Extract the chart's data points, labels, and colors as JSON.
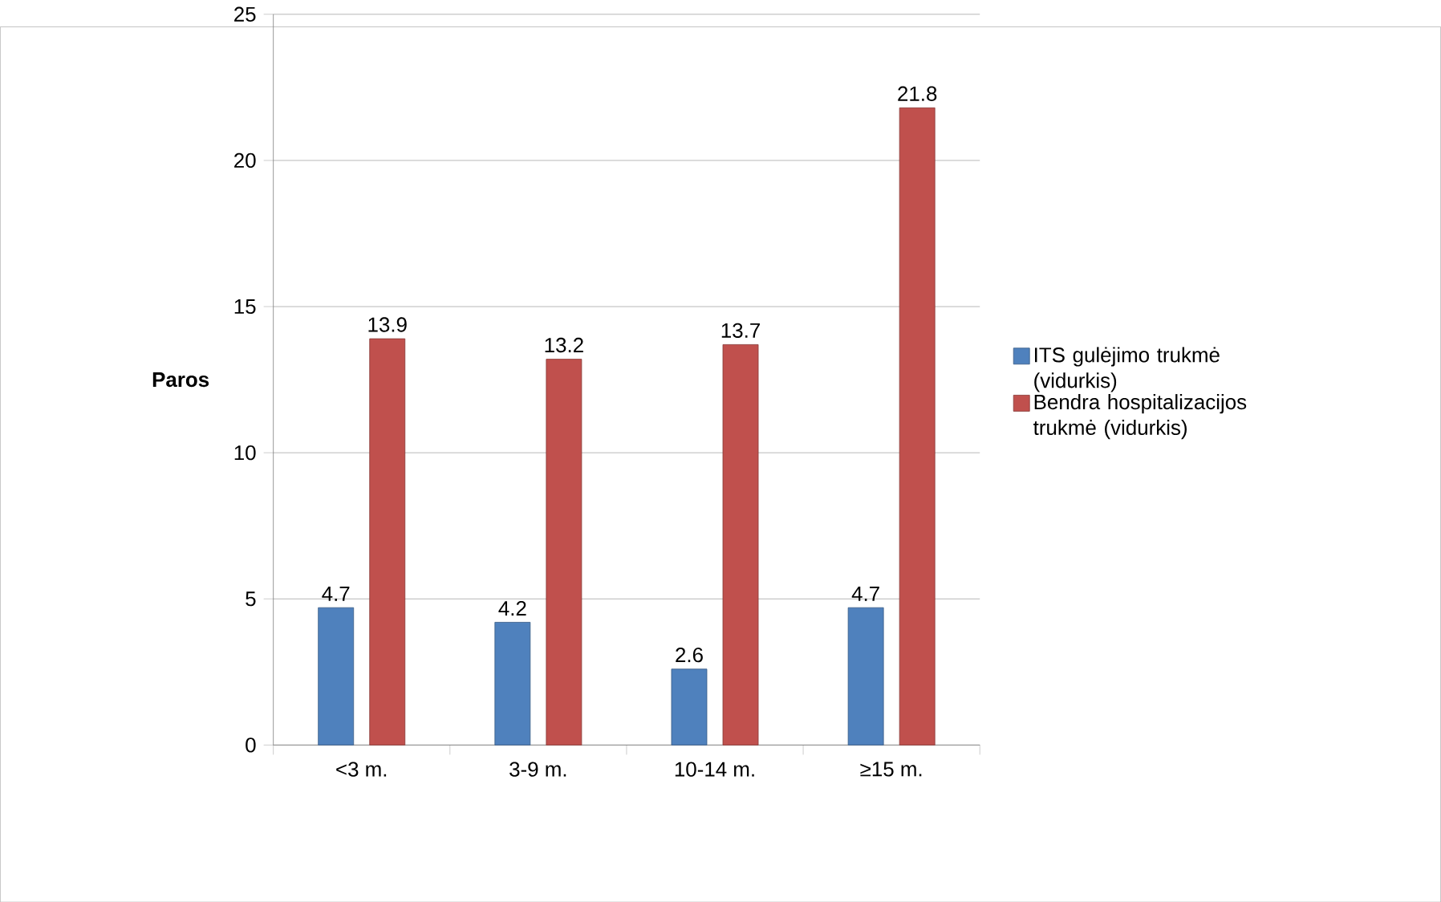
{
  "chart_data": {
    "type": "bar",
    "ylabel": "Paros",
    "categories": [
      "<3 m.",
      "3-9 m.",
      "10-14 m.",
      "≥15 m."
    ],
    "series": [
      {
        "name": "ITS gulėjimo trukmė (vidurkis)",
        "color": "#4f81bd",
        "values": [
          4.7,
          4.2,
          2.6,
          4.7
        ]
      },
      {
        "name": "Bendra hospitalizacijos trukmė (vidurkis)",
        "color": "#c0504d",
        "values": [
          13.9,
          13.2,
          13.7,
          21.8
        ]
      }
    ],
    "ylim": [
      0,
      25
    ],
    "yticks": [
      0,
      5,
      10,
      15,
      20,
      25
    ],
    "grid": "y",
    "legend": "right",
    "data_labels": true
  }
}
